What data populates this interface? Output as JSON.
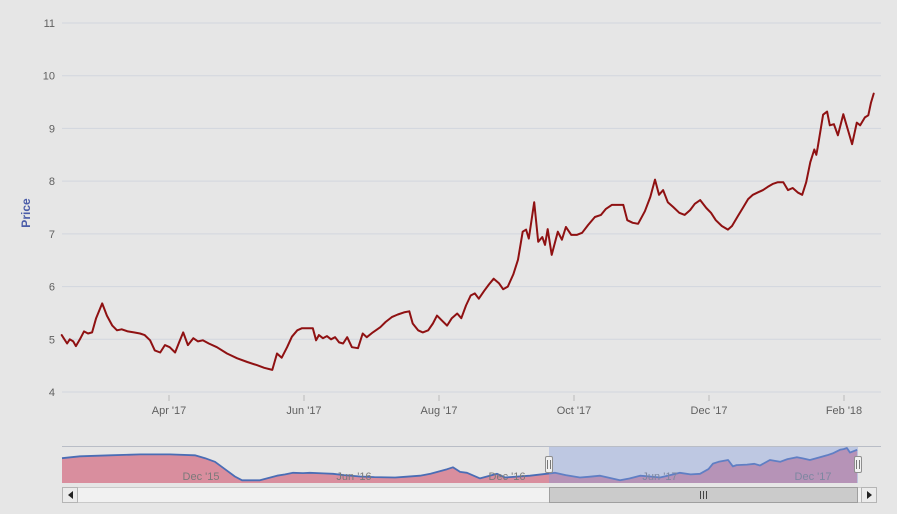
{
  "colors": {
    "background": "#e6e6e6",
    "grid": "#d2d6de",
    "axis_label": "#606060",
    "tick_mark": "#bbbbbb",
    "y_title": "#4a5ca8",
    "series_line": "#8f1112",
    "navigator_line": "#4a6db5",
    "navigator_fill": "#d98e9e",
    "navigator_mask": "rgba(130,155,220,0.40)",
    "navigator_label": "#7a7a7a",
    "navigator_border": "#b9bdc6"
  },
  "chart_data": {
    "type": "line",
    "title": "",
    "xlabel": "",
    "ylabel": "Price",
    "grid": true,
    "legend": false,
    "y_axis": {
      "title": "Price",
      "ticks": [
        4,
        5,
        6,
        7,
        8,
        9,
        10,
        11
      ],
      "range": [
        3.9,
        11.25
      ]
    },
    "x_axis": {
      "unit": "months since 2017-01-01",
      "range": [
        1.41,
        13.55
      ],
      "ticks": [
        {
          "t": 3,
          "label": "Apr '17"
        },
        {
          "t": 5,
          "label": "Jun '17"
        },
        {
          "t": 7,
          "label": "Aug '17"
        },
        {
          "t": 9,
          "label": "Oct '17"
        },
        {
          "t": 11,
          "label": "Dec '17"
        },
        {
          "t": 13,
          "label": "Feb '18"
        }
      ]
    },
    "series": {
      "name": "Price",
      "points": [
        [
          1.41,
          5.08
        ],
        [
          1.49,
          4.92
        ],
        [
          1.53,
          5.0
        ],
        [
          1.58,
          4.96
        ],
        [
          1.62,
          4.87
        ],
        [
          1.68,
          5.0
        ],
        [
          1.74,
          5.15
        ],
        [
          1.8,
          5.11
        ],
        [
          1.86,
          5.13
        ],
        [
          1.92,
          5.4
        ],
        [
          2.01,
          5.68
        ],
        [
          2.08,
          5.45
        ],
        [
          2.16,
          5.26
        ],
        [
          2.23,
          5.17
        ],
        [
          2.3,
          5.19
        ],
        [
          2.39,
          5.15
        ],
        [
          2.48,
          5.13
        ],
        [
          2.57,
          5.11
        ],
        [
          2.64,
          5.08
        ],
        [
          2.72,
          4.98
        ],
        [
          2.79,
          4.79
        ],
        [
          2.87,
          4.75
        ],
        [
          2.94,
          4.89
        ],
        [
          3.01,
          4.85
        ],
        [
          3.09,
          4.75
        ],
        [
          3.15,
          4.94
        ],
        [
          3.21,
          5.13
        ],
        [
          3.28,
          4.89
        ],
        [
          3.36,
          5.02
        ],
        [
          3.43,
          4.96
        ],
        [
          3.5,
          4.98
        ],
        [
          3.59,
          4.92
        ],
        [
          3.71,
          4.85
        ],
        [
          3.86,
          4.73
        ],
        [
          4.01,
          4.64
        ],
        [
          4.16,
          4.57
        ],
        [
          4.3,
          4.51
        ],
        [
          4.41,
          4.46
        ],
        [
          4.53,
          4.42
        ],
        [
          4.6,
          4.73
        ],
        [
          4.67,
          4.65
        ],
        [
          4.75,
          4.85
        ],
        [
          4.82,
          5.05
        ],
        [
          4.9,
          5.17
        ],
        [
          4.97,
          5.21
        ],
        [
          5.06,
          5.21
        ],
        [
          5.13,
          5.21
        ],
        [
          5.18,
          4.98
        ],
        [
          5.22,
          5.08
        ],
        [
          5.28,
          5.02
        ],
        [
          5.34,
          5.06
        ],
        [
          5.4,
          5.0
        ],
        [
          5.46,
          5.04
        ],
        [
          5.52,
          4.94
        ],
        [
          5.58,
          4.92
        ],
        [
          5.64,
          5.04
        ],
        [
          5.71,
          4.85
        ],
        [
          5.8,
          4.83
        ],
        [
          5.87,
          5.11
        ],
        [
          5.93,
          5.04
        ],
        [
          6.02,
          5.13
        ],
        [
          6.13,
          5.23
        ],
        [
          6.21,
          5.33
        ],
        [
          6.3,
          5.42
        ],
        [
          6.39,
          5.47
        ],
        [
          6.48,
          5.51
        ],
        [
          6.56,
          5.53
        ],
        [
          6.61,
          5.3
        ],
        [
          6.69,
          5.17
        ],
        [
          6.76,
          5.13
        ],
        [
          6.84,
          5.17
        ],
        [
          6.91,
          5.3
        ],
        [
          6.97,
          5.45
        ],
        [
          7.04,
          5.36
        ],
        [
          7.12,
          5.26
        ],
        [
          7.19,
          5.4
        ],
        [
          7.27,
          5.49
        ],
        [
          7.33,
          5.4
        ],
        [
          7.4,
          5.64
        ],
        [
          7.47,
          5.83
        ],
        [
          7.53,
          5.87
        ],
        [
          7.59,
          5.77
        ],
        [
          7.67,
          5.92
        ],
        [
          7.74,
          6.04
        ],
        [
          7.81,
          6.15
        ],
        [
          7.89,
          6.06
        ],
        [
          7.95,
          5.95
        ],
        [
          8.02,
          6.0
        ],
        [
          8.1,
          6.23
        ],
        [
          8.17,
          6.51
        ],
        [
          8.24,
          7.04
        ],
        [
          8.29,
          7.08
        ],
        [
          8.33,
          6.91
        ],
        [
          8.41,
          7.6
        ],
        [
          8.47,
          6.85
        ],
        [
          8.53,
          6.94
        ],
        [
          8.57,
          6.79
        ],
        [
          8.61,
          7.09
        ],
        [
          8.67,
          6.6
        ],
        [
          8.76,
          7.04
        ],
        [
          8.82,
          6.89
        ],
        [
          8.88,
          7.13
        ],
        [
          8.96,
          6.98
        ],
        [
          9.04,
          6.98
        ],
        [
          9.12,
          7.02
        ],
        [
          9.21,
          7.17
        ],
        [
          9.31,
          7.32
        ],
        [
          9.4,
          7.36
        ],
        [
          9.47,
          7.47
        ],
        [
          9.56,
          7.55
        ],
        [
          9.65,
          7.55
        ],
        [
          9.73,
          7.55
        ],
        [
          9.79,
          7.26
        ],
        [
          9.87,
          7.21
        ],
        [
          9.95,
          7.19
        ],
        [
          10.05,
          7.43
        ],
        [
          10.13,
          7.7
        ],
        [
          10.2,
          8.03
        ],
        [
          10.26,
          7.74
        ],
        [
          10.32,
          7.83
        ],
        [
          10.39,
          7.6
        ],
        [
          10.47,
          7.51
        ],
        [
          10.56,
          7.4
        ],
        [
          10.64,
          7.36
        ],
        [
          10.72,
          7.45
        ],
        [
          10.79,
          7.57
        ],
        [
          10.87,
          7.64
        ],
        [
          10.96,
          7.49
        ],
        [
          11.03,
          7.4
        ],
        [
          11.1,
          7.26
        ],
        [
          11.19,
          7.15
        ],
        [
          11.28,
          7.08
        ],
        [
          11.34,
          7.15
        ],
        [
          11.43,
          7.34
        ],
        [
          11.5,
          7.49
        ],
        [
          11.58,
          7.66
        ],
        [
          11.65,
          7.74
        ],
        [
          11.73,
          7.79
        ],
        [
          11.8,
          7.83
        ],
        [
          11.87,
          7.89
        ],
        [
          11.95,
          7.95
        ],
        [
          12.02,
          7.98
        ],
        [
          12.1,
          7.98
        ],
        [
          12.17,
          7.83
        ],
        [
          12.24,
          7.87
        ],
        [
          12.32,
          7.78
        ],
        [
          12.38,
          7.74
        ],
        [
          12.44,
          7.98
        ],
        [
          12.5,
          8.36
        ],
        [
          12.56,
          8.6
        ],
        [
          12.59,
          8.5
        ],
        [
          12.61,
          8.64
        ],
        [
          12.69,
          9.26
        ],
        [
          12.75,
          9.32
        ],
        [
          12.79,
          9.06
        ],
        [
          12.85,
          9.08
        ],
        [
          12.91,
          8.87
        ],
        [
          12.99,
          9.27
        ],
        [
          13.06,
          8.96
        ],
        [
          13.12,
          8.7
        ],
        [
          13.19,
          9.11
        ],
        [
          13.24,
          9.06
        ],
        [
          13.31,
          9.21
        ],
        [
          13.36,
          9.25
        ],
        [
          13.4,
          9.49
        ],
        [
          13.44,
          9.66
        ]
      ]
    },
    "navigator": {
      "unit": "months since 2015-01-01",
      "range": [
        5.55,
        37.67
      ],
      "selected_t": [
        24.65,
        36.76
      ],
      "axis_labels": [
        {
          "t": 11,
          "label": "Dec '15"
        },
        {
          "t": 17,
          "label": "Jun '16"
        },
        {
          "t": 23,
          "label": "Dec '16"
        },
        {
          "t": 29,
          "label": "Jun '17"
        },
        {
          "t": 35,
          "label": "Dec '17"
        }
      ],
      "points": [
        [
          5.55,
          8.14
        ],
        [
          6.25,
          8.42
        ],
        [
          7.43,
          8.56
        ],
        [
          8.61,
          8.7
        ],
        [
          9.78,
          8.7
        ],
        [
          10.76,
          8.56
        ],
        [
          11.16,
          8.14
        ],
        [
          11.55,
          7.59
        ],
        [
          11.94,
          6.49
        ],
        [
          12.33,
          5.39
        ],
        [
          12.61,
          4.83
        ],
        [
          13.31,
          4.83
        ],
        [
          13.98,
          5.52
        ],
        [
          14.3,
          5.7
        ],
        [
          14.61,
          5.94
        ],
        [
          15.0,
          5.9
        ],
        [
          15.27,
          5.94
        ],
        [
          15.8,
          5.85
        ],
        [
          16.18,
          5.8
        ],
        [
          16.6,
          5.6
        ],
        [
          17.24,
          5.39
        ],
        [
          17.8,
          5.3
        ],
        [
          18.61,
          5.25
        ],
        [
          19.0,
          5.35
        ],
        [
          19.59,
          5.52
        ],
        [
          20.0,
          5.8
        ],
        [
          20.65,
          6.49
        ],
        [
          20.88,
          6.77
        ],
        [
          21.16,
          6.08
        ],
        [
          21.43,
          5.94
        ],
        [
          21.94,
          5.11
        ],
        [
          22.61,
          5.8
        ],
        [
          22.92,
          5.25
        ],
        [
          23.9,
          5.52
        ],
        [
          24.88,
          5.94
        ],
        [
          25.3,
          5.6
        ],
        [
          25.86,
          5.25
        ],
        [
          26.2,
          5.35
        ],
        [
          26.65,
          5.52
        ],
        [
          27.0,
          5.2
        ],
        [
          27.43,
          4.83
        ],
        [
          27.8,
          5.1
        ],
        [
          28.22,
          5.52
        ],
        [
          28.6,
          5.4
        ],
        [
          29.0,
          5.25
        ],
        [
          29.4,
          5.6
        ],
        [
          29.78,
          5.94
        ],
        [
          30.2,
          5.7
        ],
        [
          30.57,
          5.8
        ],
        [
          30.9,
          6.5
        ],
        [
          31.08,
          7.32
        ],
        [
          31.3,
          7.6
        ],
        [
          31.67,
          7.87
        ],
        [
          31.86,
          6.9
        ],
        [
          32.0,
          7.1
        ],
        [
          32.41,
          7.18
        ],
        [
          32.7,
          7.3
        ],
        [
          32.92,
          7.04
        ],
        [
          33.31,
          7.87
        ],
        [
          33.71,
          7.59
        ],
        [
          34.0,
          8.0
        ],
        [
          34.37,
          8.28
        ],
        [
          34.6,
          8.1
        ],
        [
          34.88,
          7.87
        ],
        [
          35.2,
          8.2
        ],
        [
          35.55,
          8.56
        ],
        [
          35.8,
          8.9
        ],
        [
          36.06,
          9.39
        ],
        [
          36.2,
          9.5
        ],
        [
          36.33,
          9.66
        ],
        [
          36.45,
          8.97
        ],
        [
          36.73,
          9.39
        ]
      ]
    }
  }
}
